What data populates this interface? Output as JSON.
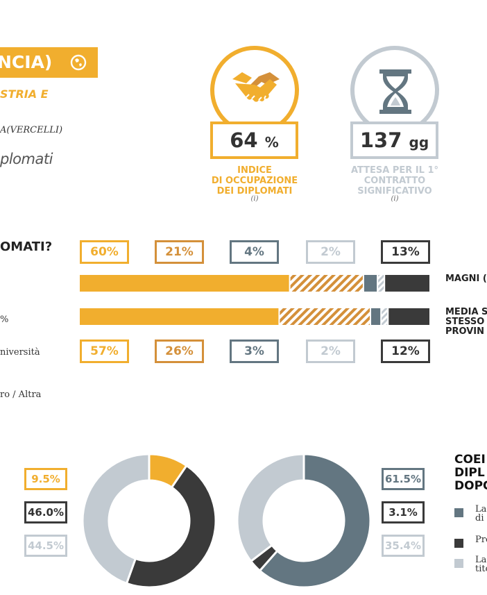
{
  "header": {
    "title": "NCIA)",
    "subtitle": "STRIA E",
    "school": "A(VERCELLI)",
    "diplomati": "plomati"
  },
  "kpis": [
    {
      "value": "64",
      "unit": "%",
      "label": [
        "INDICE",
        "DI OCCUPAZIONE",
        "DEI DIPLOMATI"
      ],
      "info": "(i)",
      "color": "#f1ae2e",
      "icon": "handshake-icon"
    },
    {
      "value": "137",
      "unit": "gg",
      "label": [
        "ATTESA PER IL 1°",
        "CONTRATTO",
        "SIGNIFICATIVO"
      ],
      "info": "(i)",
      "color": "#c2cad1",
      "icon": "hourglass-icon"
    }
  ],
  "bars": {
    "question": "OMATI?",
    "left_labels": [
      "%",
      "niversità",
      "ro / Altra"
    ],
    "row_labels": [
      [
        "MAGNI ("
      ],
      [
        "MEDIA S",
        "STESSO",
        "PROVIN"
      ]
    ]
  },
  "donuts": {
    "legend_title": [
      "COEI",
      "DIPL",
      "DOPO"
    ],
    "legend_items": [
      {
        "color": "#637681",
        "lines": [
          "La",
          "di i"
        ]
      },
      {
        "color": "#3a3a3a",
        "lines": [
          "Pre"
        ]
      },
      {
        "color": "#c2cad1",
        "lines": [
          "La",
          "tito"
        ]
      }
    ]
  },
  "chart_data": [
    {
      "type": "bar",
      "stacked": true,
      "orientation": "horizontal",
      "categories": [
        "MAGNI (",
        "MEDIA S STESSO PROVIN"
      ],
      "series": [
        {
          "color": "#f1ae2e",
          "values": [
            60,
            57
          ]
        },
        {
          "color": "#d4903a",
          "pattern": "hatched",
          "values": [
            21,
            26
          ]
        },
        {
          "color": "#637681",
          "values": [
            4,
            3
          ]
        },
        {
          "color": "#c2cad1",
          "pattern": "hatched",
          "values": [
            2,
            2
          ]
        },
        {
          "color": "#3a3a3a",
          "values": [
            13,
            12
          ]
        }
      ],
      "labels_top": [
        "60%",
        "21%",
        "4%",
        "2%",
        "13%"
      ],
      "labels_bottom": [
        "57%",
        "26%",
        "3%",
        "2%",
        "12%"
      ]
    },
    {
      "type": "pie",
      "donut": true,
      "values": [
        9.5,
        46.0,
        44.5
      ],
      "labels": [
        "9.5%",
        "46.0%",
        "44.5%"
      ],
      "colors": [
        "#f1ae2e",
        "#3a3a3a",
        "#c2cad1"
      ]
    },
    {
      "type": "pie",
      "donut": true,
      "values": [
        61.5,
        3.1,
        35.4
      ],
      "labels": [
        "61.5%",
        "3.1%",
        "35.4%"
      ],
      "colors": [
        "#637681",
        "#3a3a3a",
        "#c2cad1"
      ]
    }
  ]
}
